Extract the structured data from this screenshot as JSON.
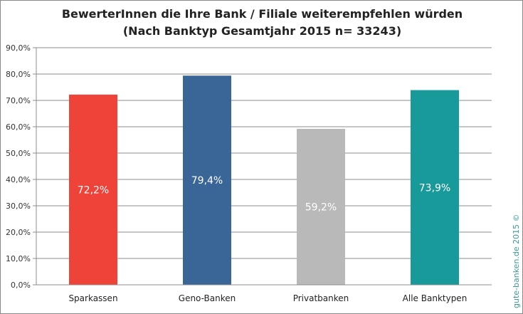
{
  "chart_data": {
    "type": "bar",
    "title": "BewerterInnen die Ihre Bank / Filiale weiterempfehlen würden",
    "subtitle": "(Nach Banktyp Gesamtjahr 2015 n= 33243)",
    "categories": [
      "Sparkassen",
      "Geno-Banken",
      "Privatbanken",
      "Alle Banktypen"
    ],
    "values": [
      72.2,
      79.4,
      59.2,
      73.9
    ],
    "data_labels": [
      "72,2%",
      "79,4%",
      "59,2%",
      "73,9%"
    ],
    "colors": [
      "#ef433a",
      "#3a6597",
      "#b9b9b9",
      "#18999a"
    ],
    "ylim": [
      0,
      90
    ],
    "yticks": [
      0,
      10,
      20,
      30,
      40,
      50,
      60,
      70,
      80,
      90
    ],
    "ytick_labels": [
      "0,0%",
      "10,0%",
      "20,0%",
      "30,0%",
      "40,0%",
      "50,0%",
      "60,0%",
      "70,0%",
      "80,0%",
      "90,0%"
    ],
    "xlabel": "",
    "ylabel": "",
    "grid": true,
    "legend": "none"
  },
  "watermark": "gute-banken.de 2015 ©"
}
